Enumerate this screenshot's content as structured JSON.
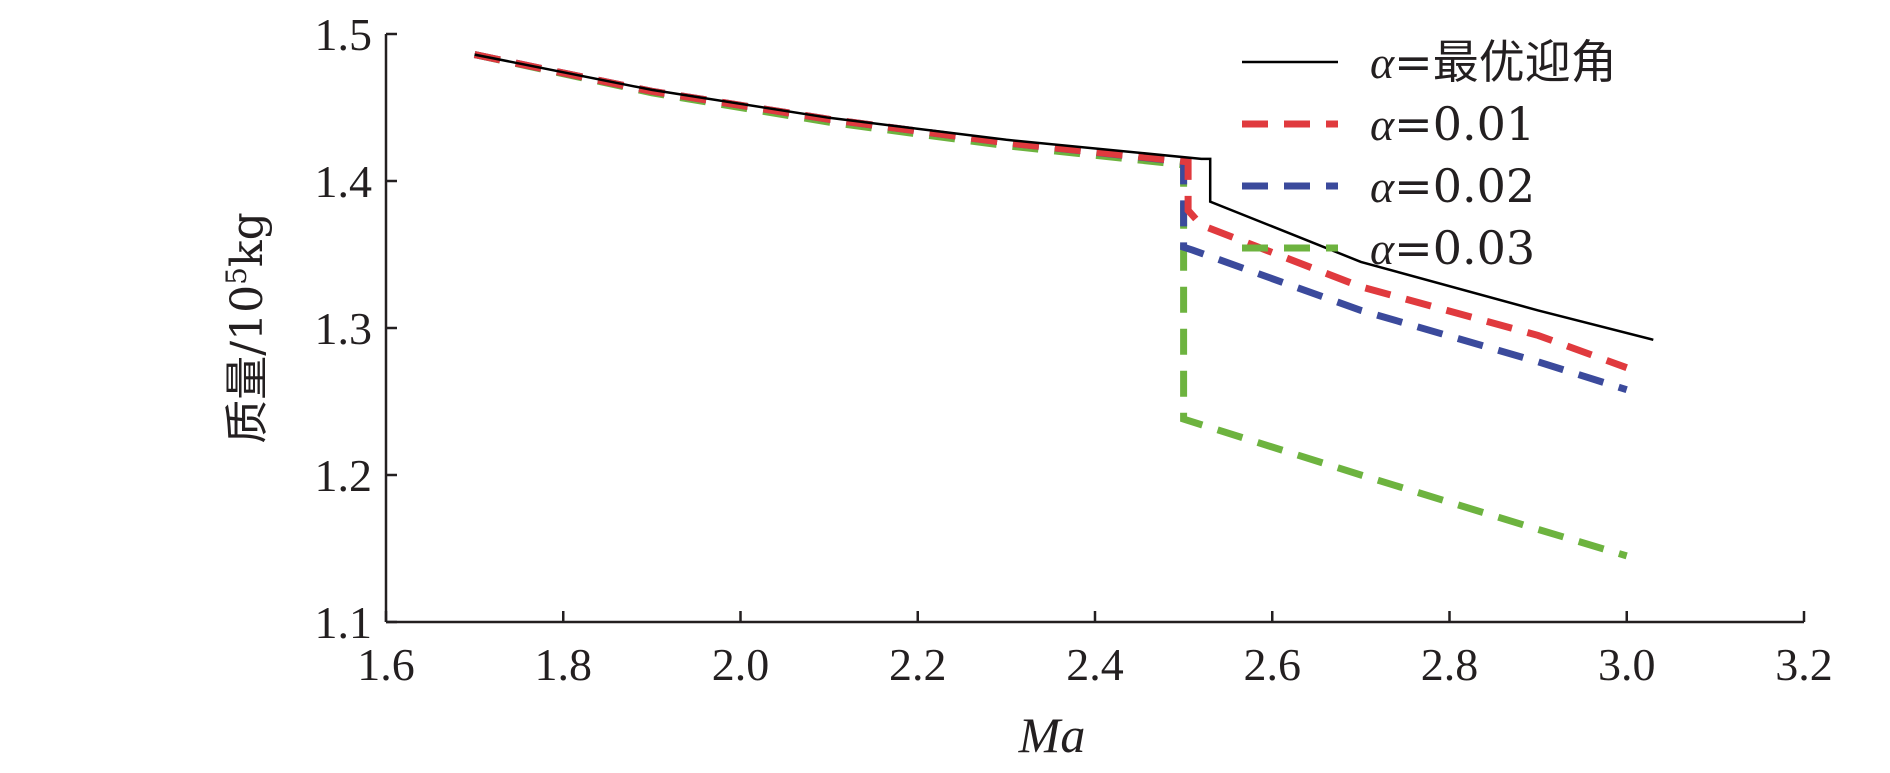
{
  "chart_data": {
    "type": "line",
    "title": "",
    "xlabel": "Ma",
    "ylabel_main": "质量/10",
    "ylabel_sup": "5",
    "ylabel_unit": "kg",
    "xlim": [
      1.6,
      3.2
    ],
    "ylim": [
      1.1,
      1.5
    ],
    "xticks": [
      1.6,
      1.8,
      2.0,
      2.2,
      2.4,
      2.6,
      2.8,
      3.0,
      3.2
    ],
    "xtick_labels": [
      "1.6",
      "1.8",
      "2.0",
      "2.2",
      "2.4",
      "2.6",
      "2.8",
      "3.0",
      "3.2"
    ],
    "yticks": [
      1.1,
      1.2,
      1.3,
      1.4,
      1.5
    ],
    "ytick_labels": [
      "1.1",
      "1.2",
      "1.3",
      "1.4",
      "1.5"
    ],
    "grid": false,
    "legend_position": "top-right",
    "series": [
      {
        "name": "α=最优迎角",
        "symbol": "α",
        "label": "=最优迎角",
        "color": "#000000",
        "style": "solid",
        "x": [
          1.7,
          1.9,
          2.1,
          2.3,
          2.52,
          2.52,
          2.53,
          2.53,
          2.7,
          2.9,
          3.03
        ],
        "y": [
          1.486,
          1.462,
          1.443,
          1.428,
          1.415,
          1.415,
          1.415,
          1.386,
          1.345,
          1.312,
          1.292
        ]
      },
      {
        "name": "α=0.01",
        "symbol": "α",
        "label": "=0.01",
        "color": "#e03a3e",
        "style": "dashed",
        "x": [
          1.7,
          1.9,
          2.1,
          2.3,
          2.505,
          2.505,
          2.505,
          2.52,
          2.7,
          2.9,
          3.0
        ],
        "y": [
          1.486,
          1.461,
          1.442,
          1.426,
          1.413,
          1.4,
          1.38,
          1.37,
          1.328,
          1.295,
          1.273
        ]
      },
      {
        "name": "α=0.02",
        "symbol": "α",
        "label": "=0.02",
        "color": "#3b4a9c",
        "style": "dashed",
        "x": [
          1.7,
          1.9,
          2.1,
          2.3,
          2.5,
          2.5,
          2.51,
          2.7,
          2.9,
          3.0
        ],
        "y": [
          1.486,
          1.461,
          1.442,
          1.426,
          1.413,
          1.355,
          1.353,
          1.312,
          1.277,
          1.258
        ]
      },
      {
        "name": "α=0.03",
        "symbol": "α",
        "label": "=0.03",
        "color": "#6db33f",
        "style": "dashed",
        "x": [
          1.7,
          1.9,
          2.1,
          2.3,
          2.5,
          2.5,
          2.5,
          2.7,
          2.9,
          3.0
        ],
        "y": [
          1.486,
          1.46,
          1.44,
          1.424,
          1.411,
          1.41,
          1.238,
          1.2,
          1.163,
          1.145
        ]
      }
    ]
  }
}
